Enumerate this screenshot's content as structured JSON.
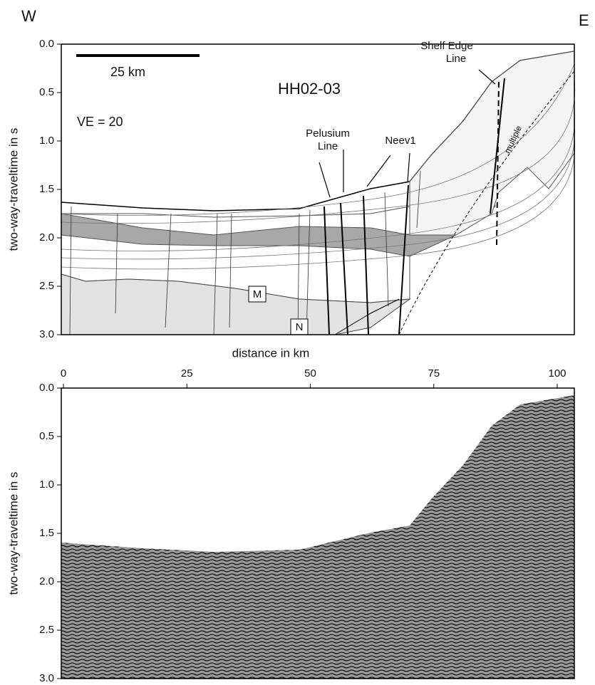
{
  "labels": {
    "west": "W",
    "east": "E",
    "scale_bar": "25 km",
    "profile": "HH02-03",
    "ve": "VE = 20",
    "pelusium": [
      "Pelusium",
      "Line"
    ],
    "neev": "Neev1",
    "shelf_edge": [
      "Shelf Edge",
      "Line"
    ],
    "multiple": "multiple",
    "unit_m": "M",
    "unit_n": "N"
  },
  "top_panel": {
    "y_axis_label": "two-way-traveltime in s",
    "yticks": [
      {
        "value": 0,
        "label": "0.0"
      },
      {
        "value": 0.5,
        "label": "0.5"
      },
      {
        "value": 1,
        "label": "1.0"
      },
      {
        "value": 1.5,
        "label": "1.5"
      },
      {
        "value": 2,
        "label": "2.0"
      },
      {
        "value": 2.5,
        "label": "2.5"
      },
      {
        "value": 3,
        "label": "3.0"
      }
    ]
  },
  "bottom_panel": {
    "y_axis_label": "two-way-traveltime in s",
    "x_axis_label": "distance in km",
    "xticks": [
      0,
      25,
      50,
      75,
      100
    ],
    "yticks": [
      {
        "value": 0,
        "label": "0.0"
      },
      {
        "value": 0.5,
        "label": "0.5"
      },
      {
        "value": 1,
        "label": "1.0"
      },
      {
        "value": 1.5,
        "label": "1.5"
      },
      {
        "value": 2,
        "label": "2.0"
      },
      {
        "value": 2.5,
        "label": "2.5"
      },
      {
        "value": 3,
        "label": "3.0"
      }
    ]
  }
}
